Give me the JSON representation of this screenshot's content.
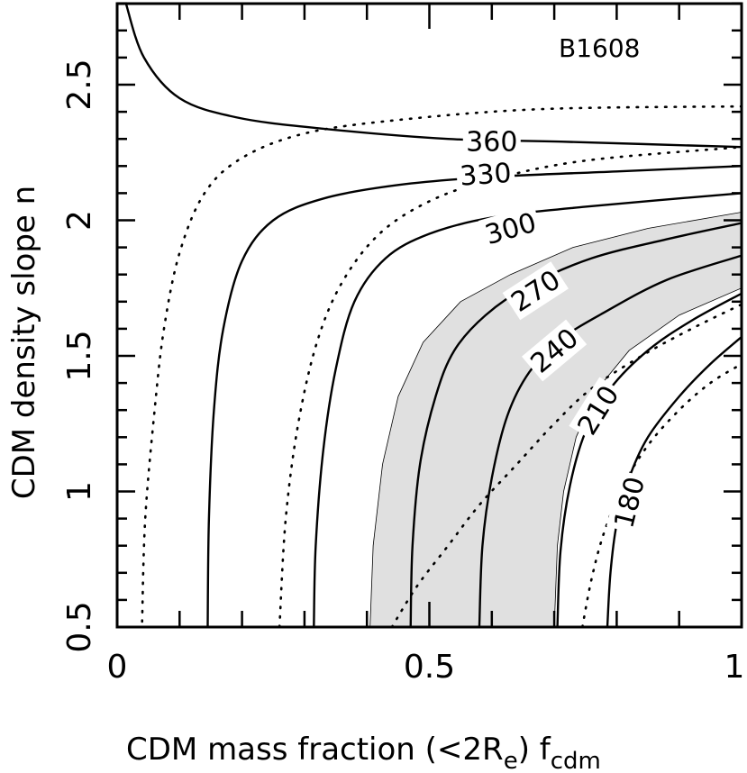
{
  "chart_data": {
    "type": "contour",
    "title": "",
    "annotation": "B1608",
    "xlabel": {
      "main": "CDM mass fraction (<2R",
      "sub": "e",
      "mid": ") f",
      "sub2": "cdm"
    },
    "ylabel": "CDM density slope n",
    "xlim": [
      0,
      1
    ],
    "ylim": [
      0.5,
      2.8
    ],
    "xticks": [
      {
        "value": 0,
        "label": "0"
      },
      {
        "value": 0.5,
        "label": "0.5"
      },
      {
        "value": 1,
        "label": "1"
      }
    ],
    "yticks": [
      {
        "value": 0.5,
        "label": "0.5"
      },
      {
        "value": 1,
        "label": "1"
      },
      {
        "value": 1.5,
        "label": "1.5"
      },
      {
        "value": 2,
        "label": "2"
      },
      {
        "value": 2.5,
        "label": "2.5"
      }
    ],
    "x_minor_step": 0.1,
    "y_minor_step": 0.1,
    "shaded_band": {
      "color": "#e0e0e0",
      "upper": [
        [
          0.405,
          0.5
        ],
        [
          0.41,
          0.8
        ],
        [
          0.425,
          1.1
        ],
        [
          0.45,
          1.35
        ],
        [
          0.49,
          1.55
        ],
        [
          0.55,
          1.7
        ],
        [
          0.63,
          1.8
        ],
        [
          0.73,
          1.9
        ],
        [
          0.85,
          1.97
        ],
        [
          1.0,
          2.03
        ]
      ],
      "lower": [
        [
          1.0,
          1.75
        ],
        [
          0.9,
          1.65
        ],
        [
          0.82,
          1.52
        ],
        [
          0.77,
          1.38
        ],
        [
          0.735,
          1.2
        ],
        [
          0.715,
          1.0
        ],
        [
          0.705,
          0.8
        ],
        [
          0.7,
          0.5
        ]
      ]
    },
    "contours": [
      {
        "level": 360,
        "label": "360",
        "style": "solid",
        "points": [
          [
            0.014,
            2.8
          ],
          [
            0.043,
            2.6
          ],
          [
            0.1,
            2.45
          ],
          [
            0.19,
            2.38
          ],
          [
            0.32,
            2.34
          ],
          [
            0.53,
            2.3
          ],
          [
            0.71,
            2.29
          ],
          [
            1.0,
            2.27
          ]
        ]
      },
      {
        "level": 330,
        "label": "330",
        "style": "solid",
        "points": [
          [
            0.145,
            0.5
          ],
          [
            0.147,
            0.9
          ],
          [
            0.155,
            1.3
          ],
          [
            0.17,
            1.6
          ],
          [
            0.2,
            1.85
          ],
          [
            0.25,
            2.0
          ],
          [
            0.33,
            2.08
          ],
          [
            0.45,
            2.13
          ],
          [
            0.6,
            2.16
          ],
          [
            0.8,
            2.18
          ],
          [
            1.0,
            2.2
          ]
        ]
      },
      {
        "level": 300,
        "label": "300",
        "style": "solid",
        "points": [
          [
            0.315,
            0.5
          ],
          [
            0.318,
            0.8
          ],
          [
            0.33,
            1.15
          ],
          [
            0.35,
            1.45
          ],
          [
            0.38,
            1.7
          ],
          [
            0.43,
            1.86
          ],
          [
            0.5,
            1.95
          ],
          [
            0.6,
            2.01
          ],
          [
            0.75,
            2.05
          ],
          [
            1.0,
            2.1
          ]
        ]
      },
      {
        "level": 270,
        "label": "270",
        "style": "solid",
        "points": [
          [
            0.47,
            0.5
          ],
          [
            0.473,
            0.8
          ],
          [
            0.485,
            1.1
          ],
          [
            0.51,
            1.35
          ],
          [
            0.54,
            1.52
          ],
          [
            0.59,
            1.65
          ],
          [
            0.66,
            1.76
          ],
          [
            0.76,
            1.86
          ],
          [
            0.88,
            1.93
          ],
          [
            1.0,
            1.99
          ]
        ]
      },
      {
        "level": 240,
        "label": "240",
        "style": "solid",
        "points": [
          [
            0.58,
            0.5
          ],
          [
            0.585,
            0.8
          ],
          [
            0.6,
            1.05
          ],
          [
            0.625,
            1.28
          ],
          [
            0.66,
            1.44
          ],
          [
            0.71,
            1.56
          ],
          [
            0.78,
            1.66
          ],
          [
            0.88,
            1.78
          ],
          [
            1.0,
            1.87
          ]
        ]
      },
      {
        "level": 210,
        "label": "210",
        "style": "solid",
        "points": [
          [
            0.705,
            0.5
          ],
          [
            0.71,
            0.78
          ],
          [
            0.725,
            1.02
          ],
          [
            0.75,
            1.22
          ],
          [
            0.79,
            1.38
          ],
          [
            0.85,
            1.52
          ],
          [
            0.92,
            1.63
          ],
          [
            1.0,
            1.73
          ]
        ]
      },
      {
        "level": 180,
        "label": "180",
        "style": "solid",
        "points": [
          [
            0.785,
            0.5
          ],
          [
            0.79,
            0.7
          ],
          [
            0.8,
            0.88
          ],
          [
            0.82,
            1.05
          ],
          [
            0.85,
            1.2
          ],
          [
            0.9,
            1.35
          ],
          [
            0.95,
            1.47
          ],
          [
            1.0,
            1.57
          ]
        ]
      },
      {
        "level": null,
        "label": "",
        "style": "dotted",
        "points": [
          [
            0.04,
            0.52
          ],
          [
            0.045,
            0.9
          ],
          [
            0.06,
            1.3
          ],
          [
            0.075,
            1.6
          ],
          [
            0.1,
            1.88
          ],
          [
            0.14,
            2.1
          ],
          [
            0.2,
            2.23
          ],
          [
            0.3,
            2.32
          ],
          [
            0.45,
            2.37
          ],
          [
            0.68,
            2.41
          ],
          [
            1.0,
            2.42
          ]
        ]
      },
      {
        "level": null,
        "label": "",
        "style": "dotted",
        "points": [
          [
            0.26,
            0.5
          ],
          [
            0.27,
            0.9
          ],
          [
            0.29,
            1.25
          ],
          [
            0.32,
            1.55
          ],
          [
            0.36,
            1.77
          ],
          [
            0.42,
            1.95
          ],
          [
            0.5,
            2.07
          ],
          [
            0.6,
            2.15
          ],
          [
            0.75,
            2.22
          ],
          [
            1.0,
            2.27
          ]
        ]
      },
      {
        "level": null,
        "label": "",
        "style": "dotted",
        "points": [
          [
            0.44,
            0.5
          ],
          [
            0.48,
            0.65
          ],
          [
            0.53,
            0.8
          ],
          [
            0.58,
            0.95
          ],
          [
            0.64,
            1.1
          ],
          [
            0.7,
            1.25
          ],
          [
            0.76,
            1.38
          ],
          [
            0.84,
            1.5
          ],
          [
            0.92,
            1.6
          ],
          [
            1.0,
            1.69
          ]
        ]
      },
      {
        "level": null,
        "label": "",
        "style": "dotted",
        "points": [
          [
            0.745,
            0.5
          ],
          [
            0.76,
            0.68
          ],
          [
            0.78,
            0.85
          ],
          [
            0.81,
            1.02
          ],
          [
            0.85,
            1.17
          ],
          [
            0.9,
            1.3
          ],
          [
            0.95,
            1.4
          ],
          [
            1.0,
            1.47
          ]
        ]
      }
    ],
    "contour_labels": [
      {
        "text": "360",
        "x": 0.6,
        "y": 2.29,
        "angle": 0
      },
      {
        "text": "330",
        "x": 0.59,
        "y": 2.17,
        "angle": -4
      },
      {
        "text": "300",
        "x": 0.63,
        "y": 1.97,
        "angle": -16
      },
      {
        "text": "270",
        "x": 0.67,
        "y": 1.74,
        "angle": -33
      },
      {
        "text": "240",
        "x": 0.7,
        "y": 1.52,
        "angle": -40
      },
      {
        "text": "210",
        "x": 0.77,
        "y": 1.3,
        "angle": -58
      },
      {
        "text": "180",
        "x": 0.82,
        "y": 0.96,
        "angle": -76
      }
    ]
  }
}
